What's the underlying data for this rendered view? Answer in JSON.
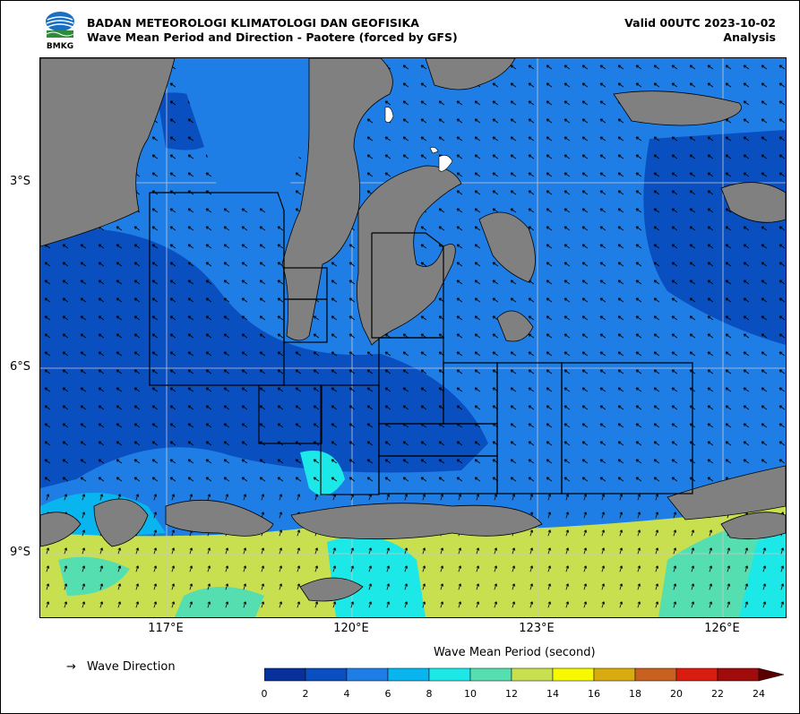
{
  "header": {
    "agency_logo_text": "BMKG",
    "title_line1": "BADAN METEOROLOGI KLIMATOLOGI DAN GEOFISIKA",
    "title_line2": "Wave Mean Period and Direction - Paotere (forced by GFS)",
    "valid": "Valid 00UTC 2023-10-02",
    "run_type": "Analysis"
  },
  "map": {
    "lat_labels": [
      "3°S",
      "6°S",
      "9°S"
    ],
    "lon_labels": [
      "117°E",
      "120°E",
      "123°E",
      "126°E"
    ],
    "land_color": "#808080",
    "dominant_wave_direction": "northwest"
  },
  "legend": {
    "direction_symbol": "→",
    "direction_label": "Wave Direction",
    "colorbar_title": "Wave Mean Period (second)",
    "colorbar_ticks": [
      "0",
      "2",
      "4",
      "6",
      "8",
      "10",
      "12",
      "14",
      "16",
      "18",
      "20",
      "22",
      "24"
    ],
    "colorbar_colors": [
      "#08309a",
      "#0a4fc0",
      "#1f7ee6",
      "#08b5ee",
      "#1de8e8",
      "#55deb0",
      "#c8e050",
      "#f8f800",
      "#d8ac10",
      "#c86020",
      "#d81c10",
      "#a00c0c"
    ],
    "overflow_color": "#5a0000"
  }
}
